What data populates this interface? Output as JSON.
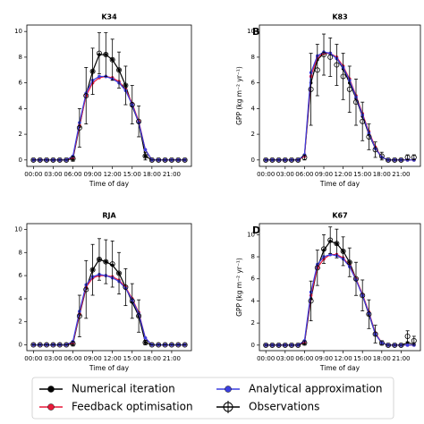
{
  "chart_data": [
    {
      "type": "line",
      "title": "K34",
      "xlabel": "Time of day",
      "x": [
        0,
        1,
        2,
        3,
        4,
        5,
        6,
        7,
        8,
        9,
        10,
        11,
        12,
        13,
        14,
        15,
        16,
        17,
        18,
        19,
        20,
        21,
        22,
        23
      ],
      "xlim": [
        -1,
        24
      ],
      "xticks": [
        {
          "value": 0,
          "label": "00:00"
        },
        {
          "value": 3,
          "label": "03:00"
        },
        {
          "value": 6,
          "label": "06:00"
        },
        {
          "value": 9,
          "label": "09:00"
        },
        {
          "value": 12,
          "label": "12:00"
        },
        {
          "value": 15,
          "label": "15:00"
        },
        {
          "value": 18,
          "label": "18:00"
        },
        {
          "value": 21,
          "label": "21:00"
        }
      ],
      "ylim": [
        -0.5,
        10.5
      ],
      "yticks": [
        0,
        2,
        4,
        6,
        8,
        10
      ],
      "series": [
        {
          "name": "Numerical iteration",
          "color": "#000000",
          "values": [
            0,
            0,
            0,
            0,
            0,
            0,
            0.1,
            2.6,
            5.1,
            6.9,
            8.2,
            8.2,
            7.8,
            7.0,
            5.8,
            4.2,
            2.9,
            0.3,
            0,
            0,
            0,
            0,
            0,
            0
          ]
        },
        {
          "name": "Feedback optimisation",
          "color": "#e8193a",
          "values": [
            0,
            0,
            0,
            0,
            0,
            0,
            0.2,
            2.7,
            5.0,
            6.0,
            6.4,
            6.5,
            6.4,
            6.1,
            5.5,
            4.4,
            3.0,
            0.8,
            0,
            0,
            0,
            0,
            0,
            0
          ]
        },
        {
          "name": "Analytical approximation",
          "color": "#3b3fe0",
          "values": [
            0,
            0,
            0,
            0,
            0,
            0,
            0.3,
            2.9,
            5.2,
            6.2,
            6.5,
            6.5,
            6.3,
            6.0,
            5.4,
            4.3,
            2.9,
            0.8,
            0,
            0,
            0,
            0,
            0,
            0
          ]
        },
        {
          "name": "Observations",
          "color": "#000000",
          "values": [
            0,
            0,
            0,
            0,
            0,
            0,
            0.1,
            2.5,
            5.0,
            6.9,
            8.3,
            8.2,
            7.8,
            7.0,
            5.8,
            4.3,
            3.0,
            0.3,
            0,
            0,
            0,
            0,
            0,
            0
          ],
          "errors": [
            0,
            0,
            0,
            0,
            0,
            0,
            0.2,
            1.5,
            2.2,
            1.8,
            1.6,
            1.7,
            1.6,
            1.4,
            1.5,
            1.5,
            1.2,
            0.3,
            0,
            0,
            0,
            0,
            0,
            0
          ]
        }
      ]
    },
    {
      "type": "line",
      "title": "K83",
      "letter": "B",
      "xlabel": "Time of day",
      "ylabel": "GPP (kg m⁻² yr⁻¹)",
      "x": [
        0,
        1,
        2,
        3,
        4,
        5,
        6,
        7,
        8,
        9,
        10,
        11,
        12,
        13,
        14,
        15,
        16,
        17,
        18,
        19,
        20,
        21,
        22,
        23
      ],
      "xlim": [
        -1,
        24
      ],
      "xticks": [
        {
          "value": 0,
          "label": "00:00"
        },
        {
          "value": 3,
          "label": "03:00"
        },
        {
          "value": 6,
          "label": "06:00"
        },
        {
          "value": 9,
          "label": "09:00"
        },
        {
          "value": 12,
          "label": "12:00"
        },
        {
          "value": 15,
          "label": "15:00"
        },
        {
          "value": 18,
          "label": "18:00"
        },
        {
          "value": 21,
          "label": "21:00"
        }
      ],
      "ylim": [
        -0.5,
        10.5
      ],
      "yticks": [
        0,
        2,
        4,
        6,
        8,
        10
      ],
      "series": [
        {
          "name": "Numerical iteration",
          "color": "#000000",
          "values": [
            0,
            0,
            0,
            0,
            0,
            0,
            0.3,
            6.0,
            7.8,
            8.3,
            8.3,
            7.9,
            7.1,
            6.0,
            4.8,
            3.4,
            2.0,
            0.9,
            0.2,
            0,
            0,
            0,
            0,
            0
          ]
        },
        {
          "name": "Feedback optimisation",
          "color": "#e8193a",
          "values": [
            0,
            0,
            0,
            0,
            0,
            0,
            0.3,
            6.5,
            8.0,
            8.3,
            8.3,
            8.0,
            7.3,
            6.3,
            5.0,
            3.6,
            2.2,
            1.0,
            0.2,
            0,
            0,
            0,
            0,
            0
          ]
        },
        {
          "name": "Analytical approximation",
          "color": "#3b3fe0",
          "values": [
            0,
            0,
            0,
            0,
            0,
            0,
            0.4,
            6.8,
            8.1,
            8.4,
            8.3,
            7.9,
            7.2,
            6.2,
            4.9,
            3.5,
            2.1,
            0.9,
            0.2,
            0,
            0,
            0,
            0,
            0
          ]
        },
        {
          "name": "Observations",
          "color": "#000000",
          "values": [
            0,
            0,
            0,
            0,
            0,
            0,
            0.2,
            5.5,
            7.0,
            8.2,
            8.0,
            7.4,
            6.5,
            5.5,
            4.5,
            3.0,
            1.8,
            0.8,
            0.3,
            0,
            0,
            0,
            0.2,
            0.2
          ],
          "errors": [
            0,
            0,
            0,
            0,
            0,
            0,
            0.2,
            2.8,
            2.0,
            1.6,
            1.5,
            1.6,
            1.8,
            1.8,
            1.8,
            1.5,
            1.0,
            0.6,
            0.3,
            0,
            0,
            0,
            0.2,
            0.2
          ]
        }
      ]
    },
    {
      "type": "line",
      "title": "RJA",
      "xlabel": "Time of day",
      "x": [
        0,
        1,
        2,
        3,
        4,
        5,
        6,
        7,
        8,
        9,
        10,
        11,
        12,
        13,
        14,
        15,
        16,
        17,
        18,
        19,
        20,
        21,
        22,
        23
      ],
      "xlim": [
        -1,
        24
      ],
      "xticks": [
        {
          "value": 0,
          "label": "00:00"
        },
        {
          "value": 3,
          "label": "03:00"
        },
        {
          "value": 6,
          "label": "06:00"
        },
        {
          "value": 9,
          "label": "09:00"
        },
        {
          "value": 12,
          "label": "12:00"
        },
        {
          "value": 15,
          "label": "15:00"
        },
        {
          "value": 18,
          "label": "18:00"
        },
        {
          "value": 21,
          "label": "21:00"
        }
      ],
      "ylim": [
        -0.5,
        10.5
      ],
      "yticks": [
        0,
        2,
        4,
        6,
        8,
        10
      ],
      "series": [
        {
          "name": "Numerical iteration",
          "color": "#000000",
          "values": [
            0,
            0,
            0,
            0,
            0,
            0,
            0.1,
            2.6,
            4.9,
            6.5,
            7.4,
            7.2,
            6.9,
            6.2,
            5.0,
            3.7,
            2.5,
            0.2,
            0,
            0,
            0,
            0,
            0,
            0
          ]
        },
        {
          "name": "Feedback optimisation",
          "color": "#e8193a",
          "values": [
            0,
            0,
            0,
            0,
            0,
            0,
            0.2,
            2.7,
            5.0,
            5.8,
            6.0,
            6.0,
            5.9,
            5.6,
            5.0,
            4.0,
            2.8,
            0.6,
            0,
            0,
            0,
            0,
            0,
            0
          ]
        },
        {
          "name": "Analytical approximation",
          "color": "#3b3fe0",
          "values": [
            0,
            0,
            0,
            0,
            0,
            0,
            0.3,
            2.9,
            5.2,
            5.9,
            6.1,
            6.0,
            5.8,
            5.5,
            4.9,
            3.9,
            2.7,
            0.6,
            0,
            0,
            0,
            0,
            0,
            0
          ]
        },
        {
          "name": "Observations",
          "color": "#000000",
          "values": [
            0,
            0,
            0,
            0,
            0,
            0,
            0.1,
            2.5,
            4.8,
            6.5,
            7.4,
            7.2,
            7.0,
            6.2,
            5.0,
            3.8,
            2.5,
            0.2,
            0,
            0,
            0,
            0,
            0,
            0
          ],
          "errors": [
            0,
            0,
            0,
            0,
            0,
            0,
            0.2,
            1.8,
            2.5,
            2.2,
            1.8,
            1.9,
            2.0,
            1.8,
            1.6,
            1.5,
            1.4,
            0.2,
            0,
            0,
            0,
            0,
            0,
            0
          ]
        }
      ]
    },
    {
      "type": "line",
      "title": "K67",
      "letter": "D",
      "xlabel": "Time of day",
      "ylabel": "GPP (kg m⁻² yr⁻¹)",
      "x": [
        0,
        1,
        2,
        3,
        4,
        5,
        6,
        7,
        8,
        9,
        10,
        11,
        12,
        13,
        14,
        15,
        16,
        17,
        18,
        19,
        20,
        21,
        22,
        23
      ],
      "xlim": [
        -1,
        24
      ],
      "xticks": [
        {
          "value": 0,
          "label": "00:00"
        },
        {
          "value": 3,
          "label": "03:00"
        },
        {
          "value": 6,
          "label": "06:00"
        },
        {
          "value": 9,
          "label": "09:00"
        },
        {
          "value": 12,
          "label": "12:00"
        },
        {
          "value": 15,
          "label": "15:00"
        },
        {
          "value": 18,
          "label": "18:00"
        },
        {
          "value": 21,
          "label": "21:00"
        }
      ],
      "ylim": [
        -0.5,
        11
      ],
      "yticks": [
        0,
        2,
        4,
        6,
        8,
        10
      ],
      "series": [
        {
          "name": "Numerical iteration",
          "color": "#000000",
          "values": [
            0,
            0,
            0,
            0,
            0,
            0,
            0.2,
            4.2,
            7.0,
            8.6,
            9.4,
            9.2,
            8.5,
            7.5,
            6.0,
            4.5,
            2.8,
            1.0,
            0.2,
            0,
            0,
            0,
            0.2,
            0.1
          ]
        },
        {
          "name": "Feedback optimisation",
          "color": "#e8193a",
          "values": [
            0,
            0,
            0,
            0,
            0,
            0,
            0.3,
            4.5,
            7.0,
            7.8,
            8.2,
            8.2,
            7.9,
            7.2,
            6.0,
            4.6,
            3.0,
            1.1,
            0.2,
            0,
            0,
            0,
            0,
            0
          ]
        },
        {
          "name": "Analytical approximation",
          "color": "#3b3fe0",
          "values": [
            0,
            0,
            0,
            0,
            0,
            0,
            0.4,
            4.8,
            7.3,
            8.0,
            8.2,
            8.1,
            7.8,
            7.1,
            5.9,
            4.5,
            2.9,
            1.0,
            0.2,
            0,
            0,
            0,
            0,
            0
          ]
        },
        {
          "name": "Observations",
          "color": "#000000",
          "values": [
            0,
            0,
            0,
            0,
            0,
            0,
            0.2,
            4.0,
            7.0,
            8.7,
            9.5,
            9.2,
            8.5,
            7.5,
            6.0,
            4.5,
            2.8,
            1.0,
            0.2,
            0,
            0,
            0,
            0.8,
            0.4
          ],
          "errors": [
            0,
            0,
            0,
            0,
            0,
            0,
            0.2,
            1.8,
            1.6,
            1.3,
            1.2,
            1.3,
            1.3,
            1.3,
            1.5,
            1.4,
            1.3,
            0.8,
            0.2,
            0,
            0,
            0,
            0.5,
            0.4
          ]
        }
      ]
    }
  ]
}
